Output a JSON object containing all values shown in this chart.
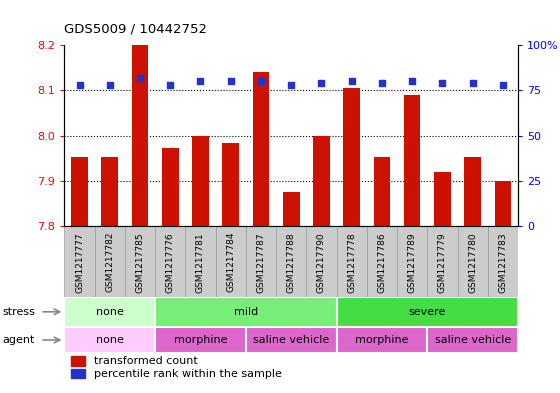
{
  "title": "GDS5009 / 10442752",
  "samples": [
    "GSM1217777",
    "GSM1217782",
    "GSM1217785",
    "GSM1217776",
    "GSM1217781",
    "GSM1217784",
    "GSM1217787",
    "GSM1217788",
    "GSM1217790",
    "GSM1217778",
    "GSM1217786",
    "GSM1217789",
    "GSM1217779",
    "GSM1217780",
    "GSM1217783"
  ],
  "transformed_count": [
    7.952,
    7.952,
    8.21,
    7.972,
    8.0,
    7.985,
    8.14,
    7.875,
    8.0,
    8.105,
    7.952,
    8.09,
    7.92,
    7.952,
    7.9
  ],
  "percentile_rank": [
    78,
    78,
    82,
    78,
    80,
    80,
    80,
    78,
    79,
    80,
    79,
    80,
    79,
    79,
    78
  ],
  "ylim_left": [
    7.8,
    8.2
  ],
  "ylim_right": [
    0,
    100
  ],
  "yticks_left": [
    7.8,
    7.9,
    8.0,
    8.1,
    8.2
  ],
  "yticks_right": [
    0,
    25,
    50,
    75,
    100
  ],
  "grid_lines": [
    7.9,
    8.0,
    8.1
  ],
  "bar_color": "#cc1100",
  "dot_color": "#2233cc",
  "stress_groups": [
    {
      "label": "none",
      "start": 0,
      "end": 3,
      "color": "#ccffcc"
    },
    {
      "label": "mild",
      "start": 3,
      "end": 9,
      "color": "#77ee77"
    },
    {
      "label": "severe",
      "start": 9,
      "end": 15,
      "color": "#44dd44"
    }
  ],
  "agent_groups": [
    {
      "label": "none",
      "start": 0,
      "end": 3,
      "color": "#ffccff"
    },
    {
      "label": "morphine",
      "start": 3,
      "end": 6,
      "color": "#dd66cc"
    },
    {
      "label": "saline vehicle",
      "start": 6,
      "end": 9,
      "color": "#dd66cc"
    },
    {
      "label": "morphine",
      "start": 9,
      "end": 12,
      "color": "#dd66cc"
    },
    {
      "label": "saline vehicle",
      "start": 12,
      "end": 15,
      "color": "#dd66cc"
    }
  ],
  "legend_bar_label": "transformed count",
  "legend_dot_label": "percentile rank within the sample",
  "stress_label": "stress",
  "agent_label": "agent",
  "xtick_bg_color": "#cccccc",
  "xtick_border_color": "#999999"
}
